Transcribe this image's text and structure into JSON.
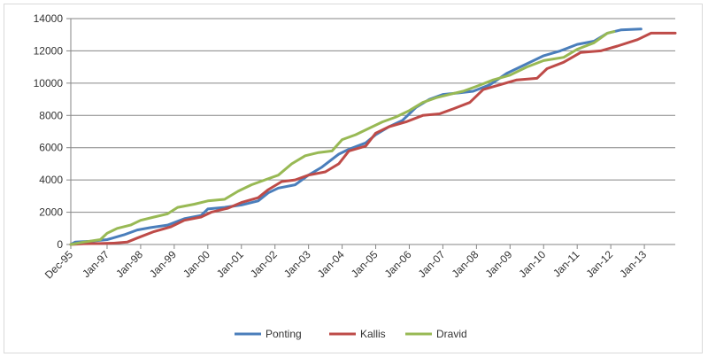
{
  "chart_data": {
    "type": "line",
    "title": "",
    "xlabel": "",
    "ylabel": "",
    "ylim": [
      0,
      14000
    ],
    "yticks": [
      0,
      2000,
      4000,
      6000,
      8000,
      10000,
      12000,
      14000
    ],
    "ytick_labels": [
      "0",
      "2000",
      "4000",
      "6000",
      "8000",
      "10000",
      "12000",
      "14000"
    ],
    "xlim": [
      1995.92,
      2013.92
    ],
    "xticks": [
      1995.92,
      1997.0,
      1998.0,
      1999.0,
      2000.0,
      2001.0,
      2002.0,
      2003.0,
      2004.0,
      2005.0,
      2006.0,
      2007.0,
      2008.0,
      2009.0,
      2010.0,
      2011.0,
      2012.0,
      2013.0
    ],
    "xtick_labels": [
      "Dec-95",
      "Jan-97",
      "Jan-98",
      "Jan-99",
      "Jan-00",
      "Jan-01",
      "Jan-02",
      "Jan-03",
      "Jan-04",
      "Jan-05",
      "Jan-06",
      "Jan-07",
      "Jan-08",
      "Jan-09",
      "Jan-10",
      "Jan-11",
      "Jan-12",
      "Jan-13"
    ],
    "grid": "horizontal",
    "legend_position": "bottom",
    "series": [
      {
        "name": "Ponting",
        "color": "#4a7ebb",
        "points": [
          [
            1995.92,
            0
          ],
          [
            1996.05,
            150
          ],
          [
            1996.5,
            200
          ],
          [
            1997.0,
            300
          ],
          [
            1997.5,
            600
          ],
          [
            1997.9,
            900
          ],
          [
            1998.3,
            1050
          ],
          [
            1998.8,
            1200
          ],
          [
            1999.3,
            1600
          ],
          [
            1999.8,
            1800
          ],
          [
            2000.0,
            2200
          ],
          [
            2000.5,
            2300
          ],
          [
            2001.0,
            2450
          ],
          [
            2001.5,
            2700
          ],
          [
            2001.8,
            3200
          ],
          [
            2002.1,
            3500
          ],
          [
            2002.6,
            3700
          ],
          [
            2003.0,
            4300
          ],
          [
            2003.4,
            4800
          ],
          [
            2003.9,
            5600
          ],
          [
            2004.2,
            5900
          ],
          [
            2004.7,
            6300
          ],
          [
            2005.0,
            6800
          ],
          [
            2005.4,
            7300
          ],
          [
            2005.8,
            7700
          ],
          [
            2006.2,
            8500
          ],
          [
            2006.6,
            9000
          ],
          [
            2007.0,
            9300
          ],
          [
            2007.5,
            9400
          ],
          [
            2007.9,
            9500
          ],
          [
            2008.4,
            9900
          ],
          [
            2008.9,
            10600
          ],
          [
            2009.3,
            11000
          ],
          [
            2009.7,
            11400
          ],
          [
            2010.0,
            11700
          ],
          [
            2010.5,
            12000
          ],
          [
            2011.0,
            12400
          ],
          [
            2011.5,
            12600
          ],
          [
            2011.9,
            13100
          ],
          [
            2012.3,
            13300
          ],
          [
            2012.9,
            13350
          ]
        ]
      },
      {
        "name": "Kallis",
        "color": "#be4b48",
        "points": [
          [
            1995.92,
            0
          ],
          [
            1996.3,
            50
          ],
          [
            1996.8,
            60
          ],
          [
            1997.2,
            80
          ],
          [
            1997.6,
            150
          ],
          [
            1997.9,
            400
          ],
          [
            1998.4,
            800
          ],
          [
            1998.9,
            1100
          ],
          [
            1999.3,
            1500
          ],
          [
            1999.8,
            1700
          ],
          [
            2000.1,
            2000
          ],
          [
            2000.6,
            2250
          ],
          [
            2001.0,
            2600
          ],
          [
            2001.5,
            2900
          ],
          [
            2001.8,
            3400
          ],
          [
            2002.2,
            3900
          ],
          [
            2002.6,
            4000
          ],
          [
            2003.0,
            4300
          ],
          [
            2003.5,
            4500
          ],
          [
            2003.9,
            5000
          ],
          [
            2004.2,
            5800
          ],
          [
            2004.7,
            6100
          ],
          [
            2005.0,
            6900
          ],
          [
            2005.4,
            7300
          ],
          [
            2005.9,
            7600
          ],
          [
            2006.4,
            8000
          ],
          [
            2006.9,
            8100
          ],
          [
            2007.3,
            8400
          ],
          [
            2007.8,
            8800
          ],
          [
            2008.2,
            9600
          ],
          [
            2008.7,
            9900
          ],
          [
            2009.2,
            10200
          ],
          [
            2009.8,
            10300
          ],
          [
            2010.1,
            10900
          ],
          [
            2010.6,
            11300
          ],
          [
            2011.1,
            11900
          ],
          [
            2011.7,
            12000
          ],
          [
            2012.2,
            12300
          ],
          [
            2012.8,
            12700
          ],
          [
            2013.2,
            13100
          ],
          [
            2013.92,
            13100
          ]
        ]
      },
      {
        "name": "Dravid",
        "color": "#98b954",
        "points": [
          [
            1995.92,
            0
          ],
          [
            1996.3,
            150
          ],
          [
            1996.8,
            300
          ],
          [
            1997.0,
            700
          ],
          [
            1997.3,
            1000
          ],
          [
            1997.7,
            1200
          ],
          [
            1998.0,
            1500
          ],
          [
            1998.4,
            1700
          ],
          [
            1998.8,
            1900
          ],
          [
            1999.1,
            2300
          ],
          [
            1999.6,
            2500
          ],
          [
            2000.0,
            2700
          ],
          [
            2000.5,
            2800
          ],
          [
            2000.9,
            3300
          ],
          [
            2001.3,
            3700
          ],
          [
            2001.7,
            4000
          ],
          [
            2002.1,
            4300
          ],
          [
            2002.5,
            5000
          ],
          [
            2002.9,
            5500
          ],
          [
            2003.3,
            5700
          ],
          [
            2003.7,
            5800
          ],
          [
            2004.0,
            6500
          ],
          [
            2004.4,
            6800
          ],
          [
            2004.8,
            7200
          ],
          [
            2005.2,
            7600
          ],
          [
            2005.6,
            7900
          ],
          [
            2006.0,
            8300
          ],
          [
            2006.4,
            8800
          ],
          [
            2006.8,
            9100
          ],
          [
            2007.2,
            9300
          ],
          [
            2007.6,
            9500
          ],
          [
            2008.0,
            9800
          ],
          [
            2008.5,
            10200
          ],
          [
            2009.0,
            10500
          ],
          [
            2009.5,
            11000
          ],
          [
            2010.0,
            11400
          ],
          [
            2010.6,
            11600
          ],
          [
            2011.0,
            12100
          ],
          [
            2011.5,
            12500
          ],
          [
            2011.9,
            13100
          ],
          [
            2012.1,
            13200
          ]
        ]
      }
    ]
  }
}
